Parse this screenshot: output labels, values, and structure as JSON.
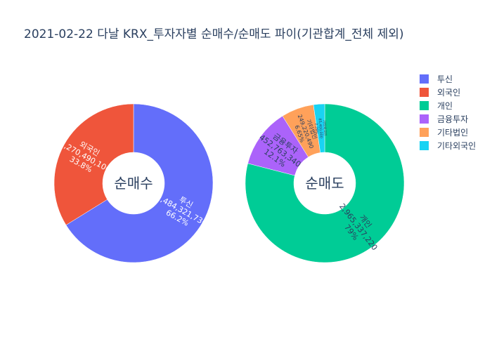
{
  "title": "2021-02-22 다날 KRX_투자자별 순매수/순매도 파이(기관합계_전체 제외)",
  "legend": [
    {
      "label": "투신",
      "color": "#636efa"
    },
    {
      "label": "외국인",
      "color": "#EF553B"
    },
    {
      "label": "개인",
      "color": "#00cc96"
    },
    {
      "label": "금융투자",
      "color": "#ab63fa"
    },
    {
      "label": "기타법인",
      "color": "#FFA15A"
    },
    {
      "label": "기타외국인",
      "color": "#19d3f3"
    }
  ],
  "chart_data": [
    {
      "type": "pie",
      "hole_label": "순매수",
      "labels": [
        "투신",
        "외국인"
      ],
      "values": [
        2484321730,
        1270490100
      ],
      "percent_labels": [
        "66.2%",
        "33.8%"
      ],
      "colors": [
        "#636efa",
        "#EF553B"
      ]
    },
    {
      "type": "pie",
      "hole_label": "순매도",
      "labels": [
        "개인",
        "금융투자",
        "기타법인",
        "기타외국인"
      ],
      "values": [
        2965337220,
        452763340,
        249220490,
        85400000
      ],
      "percent_labels": [
        "79%",
        "12.1%",
        "6.65%",
        "2.28%"
      ],
      "colors": [
        "#00cc96",
        "#ab63fa",
        "#FFA15A",
        "#19d3f3"
      ]
    }
  ]
}
